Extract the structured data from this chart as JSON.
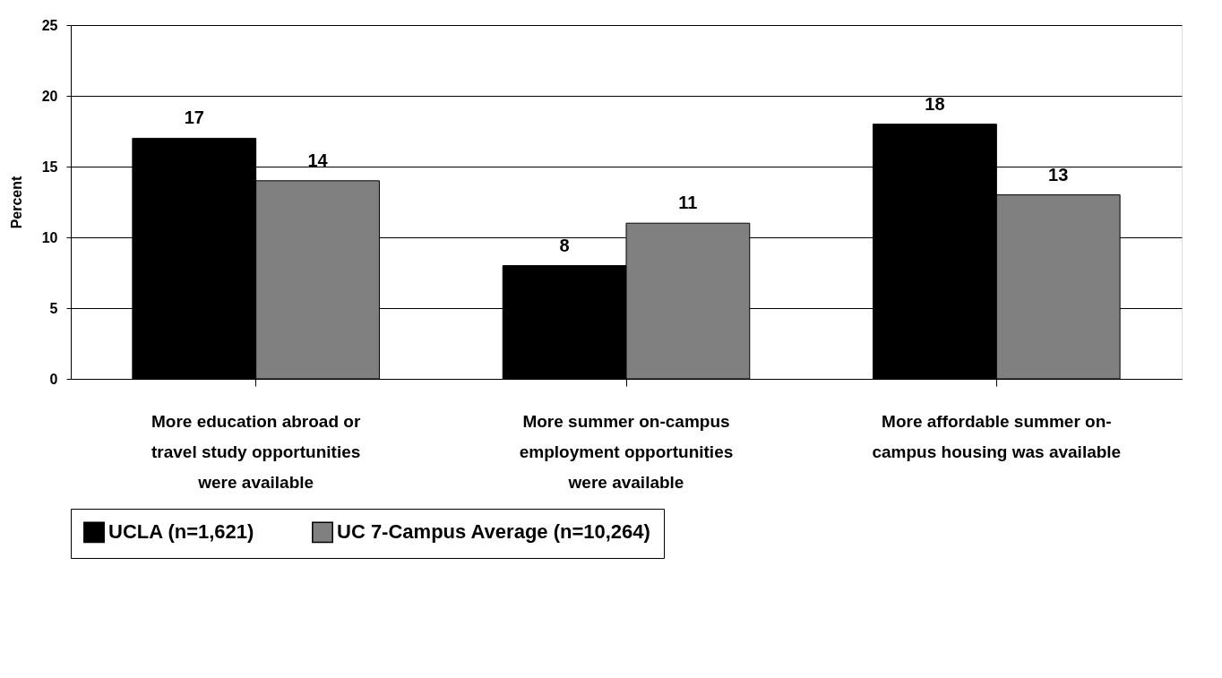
{
  "chart_data": {
    "type": "bar",
    "ylabel": "Percent",
    "categories": [
      "More education abroad or travel study opportunities were available",
      "More summer on-campus employment opportunities were available",
      "More affordable summer on-campus housing was available"
    ],
    "series": [
      {
        "name": "UCLA (n=1,621)",
        "color": "#000000",
        "values": [
          17,
          8,
          18
        ]
      },
      {
        "name": "UC 7-Campus Average (n=10,264)",
        "color": "#808080",
        "values": [
          14,
          11,
          13
        ]
      }
    ],
    "ylim": [
      0,
      25
    ],
    "yticks": [
      0,
      5,
      10,
      15,
      20,
      25
    ],
    "grid": "y",
    "legend": "bottom",
    "data_labels": true
  }
}
